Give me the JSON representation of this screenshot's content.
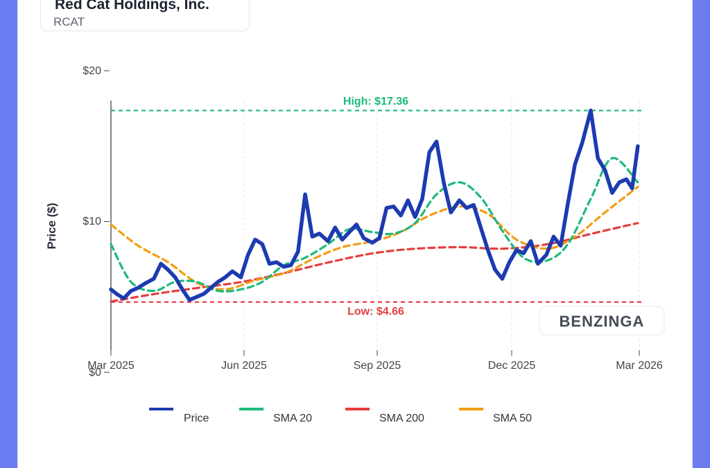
{
  "header": {
    "company_name": "Red Cat Holdings, Inc.",
    "ticker": "RCAT"
  },
  "watermark": "BENZINGA",
  "colors": {
    "price": "#1d3bb0",
    "sma20": "#1db97a",
    "sma200": "#e53e3e",
    "sma50": "#f39c12",
    "high_line": "#1db97a",
    "low_line": "#e53e3e"
  },
  "chart_data": {
    "type": "line",
    "ylabel": "Price ($)",
    "ylim": [
      0,
      20
    ],
    "y_ticks": [
      "$20",
      "$10",
      "$0"
    ],
    "x_ticks": [
      "Mar 2025",
      "Jun 2025",
      "Sep 2025",
      "Dec 2025",
      "Mar 2026"
    ],
    "x_range": [
      "2025-03-01",
      "2026-03-06"
    ],
    "grid": true,
    "legend_position": "bottom",
    "annotations": [
      {
        "text": "High: $17.36",
        "value": 17.36
      },
      {
        "text": "Low: $4.66",
        "value": 4.66
      }
    ],
    "series": [
      {
        "name": "Price",
        "x": [
          "2025-03-01",
          "2025-03-05",
          "2025-03-10",
          "2025-03-15",
          "2025-03-20",
          "2025-03-25",
          "2025-03-31",
          "2025-04-05",
          "2025-04-10",
          "2025-04-15",
          "2025-04-20",
          "2025-04-25",
          "2025-04-30",
          "2025-05-05",
          "2025-05-10",
          "2025-05-15",
          "2025-05-20",
          "2025-05-25",
          "2025-05-31",
          "2025-06-05",
          "2025-06-10",
          "2025-06-15",
          "2025-06-20",
          "2025-06-25",
          "2025-06-30",
          "2025-07-05",
          "2025-07-10",
          "2025-07-15",
          "2025-07-20",
          "2025-07-25",
          "2025-07-31",
          "2025-08-05",
          "2025-08-10",
          "2025-08-15",
          "2025-08-20",
          "2025-08-25",
          "2025-08-31",
          "2025-09-05",
          "2025-09-10",
          "2025-09-15",
          "2025-09-20",
          "2025-09-25",
          "2025-09-30",
          "2025-10-05",
          "2025-10-10",
          "2025-10-15",
          "2025-10-20",
          "2025-10-25",
          "2025-10-31",
          "2025-11-05",
          "2025-11-10",
          "2025-11-15",
          "2025-11-20",
          "2025-11-25",
          "2025-11-30",
          "2025-12-05",
          "2025-12-10",
          "2025-12-15",
          "2025-12-20",
          "2025-12-25",
          "2025-12-31",
          "2026-01-05",
          "2026-01-10",
          "2026-01-15",
          "2026-01-20",
          "2026-01-25",
          "2026-01-31",
          "2026-02-05",
          "2026-02-10",
          "2026-02-15",
          "2026-02-20",
          "2026-02-25",
          "2026-03-01",
          "2026-03-05"
        ],
        "values": [
          5.5,
          5.2,
          4.9,
          5.4,
          5.6,
          5.9,
          6.2,
          7.2,
          6.8,
          6.3,
          5.5,
          4.8,
          5.0,
          5.2,
          5.6,
          6.0,
          6.3,
          6.7,
          6.3,
          7.8,
          8.8,
          8.5,
          7.2,
          7.3,
          7.0,
          7.1,
          8.0,
          11.8,
          9.0,
          9.2,
          8.7,
          9.6,
          8.8,
          9.3,
          9.8,
          8.9,
          8.6,
          8.9,
          10.9,
          11.0,
          10.4,
          11.4,
          10.3,
          11.5,
          14.6,
          15.3,
          12.6,
          10.6,
          11.4,
          10.9,
          11.1,
          9.6,
          8.1,
          6.8,
          6.2,
          7.3,
          8.1,
          7.9,
          8.7,
          7.2,
          7.8,
          9.0,
          8.4,
          11.2,
          13.8,
          15.2,
          17.36,
          14.2,
          13.4,
          11.9,
          12.6,
          12.8,
          12.2,
          15.0
        ]
      },
      {
        "name": "SMA 20",
        "x": [
          "2025-03-01",
          "2025-03-15",
          "2025-03-31",
          "2025-04-15",
          "2025-04-30",
          "2025-05-15",
          "2025-05-31",
          "2025-06-15",
          "2025-06-30",
          "2025-07-15",
          "2025-07-31",
          "2025-08-15",
          "2025-08-31",
          "2025-09-15",
          "2025-09-30",
          "2025-10-15",
          "2025-10-31",
          "2025-11-15",
          "2025-11-30",
          "2025-12-15",
          "2025-12-31",
          "2026-01-15",
          "2026-01-31",
          "2026-02-15",
          "2026-03-05"
        ],
        "values": [
          8.5,
          6.0,
          5.4,
          6.0,
          6.0,
          5.4,
          5.5,
          6.0,
          7.1,
          7.6,
          8.5,
          9.5,
          9.3,
          9.2,
          9.9,
          11.8,
          12.6,
          11.6,
          9.4,
          7.6,
          7.4,
          8.5,
          11.5,
          14.2,
          12.6
        ]
      },
      {
        "name": "SMA 200",
        "x": [
          "2025-03-01",
          "2025-04-01",
          "2025-05-01",
          "2025-06-01",
          "2025-07-01",
          "2025-08-01",
          "2025-09-01",
          "2025-10-01",
          "2025-11-01",
          "2025-12-01",
          "2026-01-01",
          "2026-02-01",
          "2026-03-05"
        ],
        "values": [
          4.7,
          5.2,
          5.6,
          6.0,
          6.6,
          7.3,
          7.9,
          8.2,
          8.3,
          8.2,
          8.5,
          9.2,
          9.9
        ]
      },
      {
        "name": "SMA 50",
        "x": [
          "2025-03-01",
          "2025-03-20",
          "2025-04-10",
          "2025-05-01",
          "2025-05-20",
          "2025-06-10",
          "2025-07-01",
          "2025-07-20",
          "2025-08-10",
          "2025-09-01",
          "2025-09-20",
          "2025-10-10",
          "2025-11-01",
          "2025-11-20",
          "2025-12-10",
          "2026-01-01",
          "2026-01-20",
          "2026-02-10",
          "2026-03-05"
        ],
        "values": [
          9.8,
          8.4,
          7.3,
          5.9,
          5.5,
          6.1,
          6.6,
          7.5,
          8.3,
          8.7,
          9.3,
          10.4,
          11.0,
          10.5,
          8.8,
          8.2,
          9.0,
          10.6,
          12.3
        ]
      }
    ]
  }
}
